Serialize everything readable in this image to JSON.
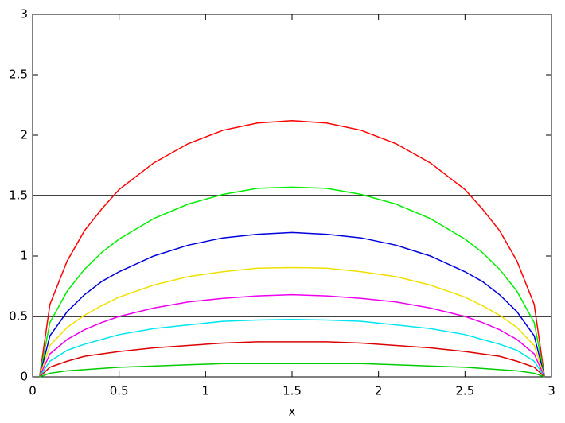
{
  "chart_data": {
    "type": "line",
    "xlabel": "x",
    "x": [
      0.04,
      0.1,
      0.2,
      0.3,
      0.4,
      0.5,
      0.7,
      0.9,
      1.1,
      1.3,
      1.5,
      1.7,
      1.9,
      2.1,
      2.3,
      2.5,
      2.6,
      2.7,
      2.8,
      2.9,
      2.96
    ],
    "series": [
      {
        "color": "#ff0000",
        "values": [
          0,
          0.6,
          0.96,
          1.21,
          1.39,
          1.55,
          1.77,
          1.93,
          2.04,
          2.1,
          2.12,
          2.1,
          2.04,
          1.93,
          1.77,
          1.55,
          1.39,
          1.21,
          0.96,
          0.6,
          0
        ]
      },
      {
        "color": "#00ee00",
        "values": [
          0,
          0.45,
          0.71,
          0.89,
          1.03,
          1.14,
          1.31,
          1.43,
          1.51,
          1.56,
          1.57,
          1.56,
          1.51,
          1.43,
          1.31,
          1.14,
          1.03,
          0.89,
          0.71,
          0.45,
          0
        ]
      },
      {
        "color": "#0000dd",
        "values": [
          0,
          0.34,
          0.54,
          0.68,
          0.79,
          0.87,
          1.0,
          1.09,
          1.15,
          1.18,
          1.195,
          1.18,
          1.15,
          1.09,
          1.0,
          0.87,
          0.79,
          0.68,
          0.54,
          0.34,
          0
        ]
      },
      {
        "color": "#f0e000",
        "values": [
          0,
          0.26,
          0.41,
          0.51,
          0.59,
          0.66,
          0.76,
          0.83,
          0.87,
          0.9,
          0.905,
          0.9,
          0.87,
          0.83,
          0.76,
          0.66,
          0.59,
          0.51,
          0.41,
          0.26,
          0
        ]
      },
      {
        "color": "#ee00ee",
        "values": [
          0,
          0.19,
          0.31,
          0.39,
          0.45,
          0.5,
          0.57,
          0.62,
          0.65,
          0.67,
          0.68,
          0.67,
          0.65,
          0.62,
          0.57,
          0.5,
          0.45,
          0.39,
          0.31,
          0.19,
          0
        ]
      },
      {
        "color": "#00e5ee",
        "values": [
          0,
          0.13,
          0.22,
          0.27,
          0.31,
          0.35,
          0.4,
          0.43,
          0.46,
          0.47,
          0.475,
          0.47,
          0.46,
          0.43,
          0.4,
          0.35,
          0.31,
          0.27,
          0.22,
          0.13,
          0
        ]
      },
      {
        "color": "#dd0000",
        "values": [
          0,
          0.08,
          0.13,
          0.17,
          0.19,
          0.21,
          0.24,
          0.26,
          0.28,
          0.29,
          0.29,
          0.29,
          0.28,
          0.26,
          0.24,
          0.21,
          0.19,
          0.17,
          0.13,
          0.08,
          0
        ]
      },
      {
        "color": "#00cc00",
        "values": [
          0,
          0.03,
          0.05,
          0.06,
          0.07,
          0.08,
          0.09,
          0.1,
          0.11,
          0.11,
          0.11,
          0.11,
          0.11,
          0.1,
          0.09,
          0.08,
          0.07,
          0.06,
          0.05,
          0.03,
          0
        ]
      }
    ],
    "hlines": [
      0.5,
      1.5
    ],
    "hline_color": "#000000",
    "xlim": [
      0,
      3
    ],
    "xticks": [
      0,
      0.5,
      1,
      1.5,
      2,
      2.5,
      3
    ],
    "ylim": [
      0,
      3
    ],
    "yticks": [
      0,
      0.5,
      1,
      1.5,
      2,
      2.5,
      3
    ]
  }
}
